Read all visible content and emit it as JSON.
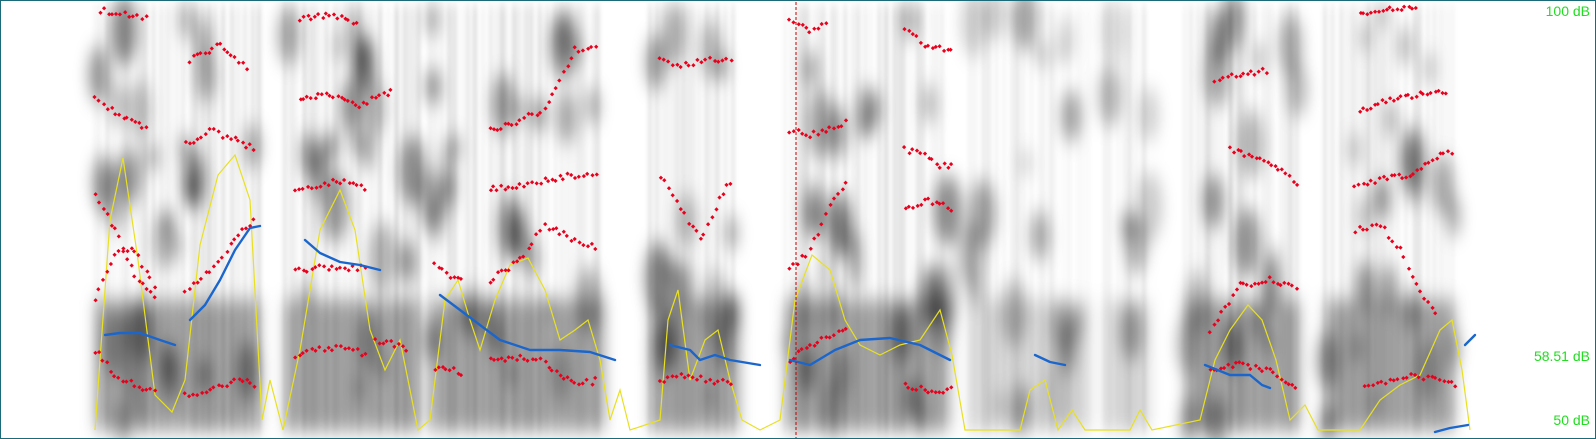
{
  "intensity_scale": {
    "max_label": "100 dB",
    "mid_label": "58.51 dB",
    "min_label": "50 dB"
  },
  "colors": {
    "background": "#ffffff",
    "spectrogram": "#000000",
    "formant": "#e8001c",
    "pitch": "#1a66cc",
    "intensity": "#e8e020",
    "cursor": "#c00000",
    "scale_text": "#22dd22",
    "frame": "#1a6a7a"
  }
}
